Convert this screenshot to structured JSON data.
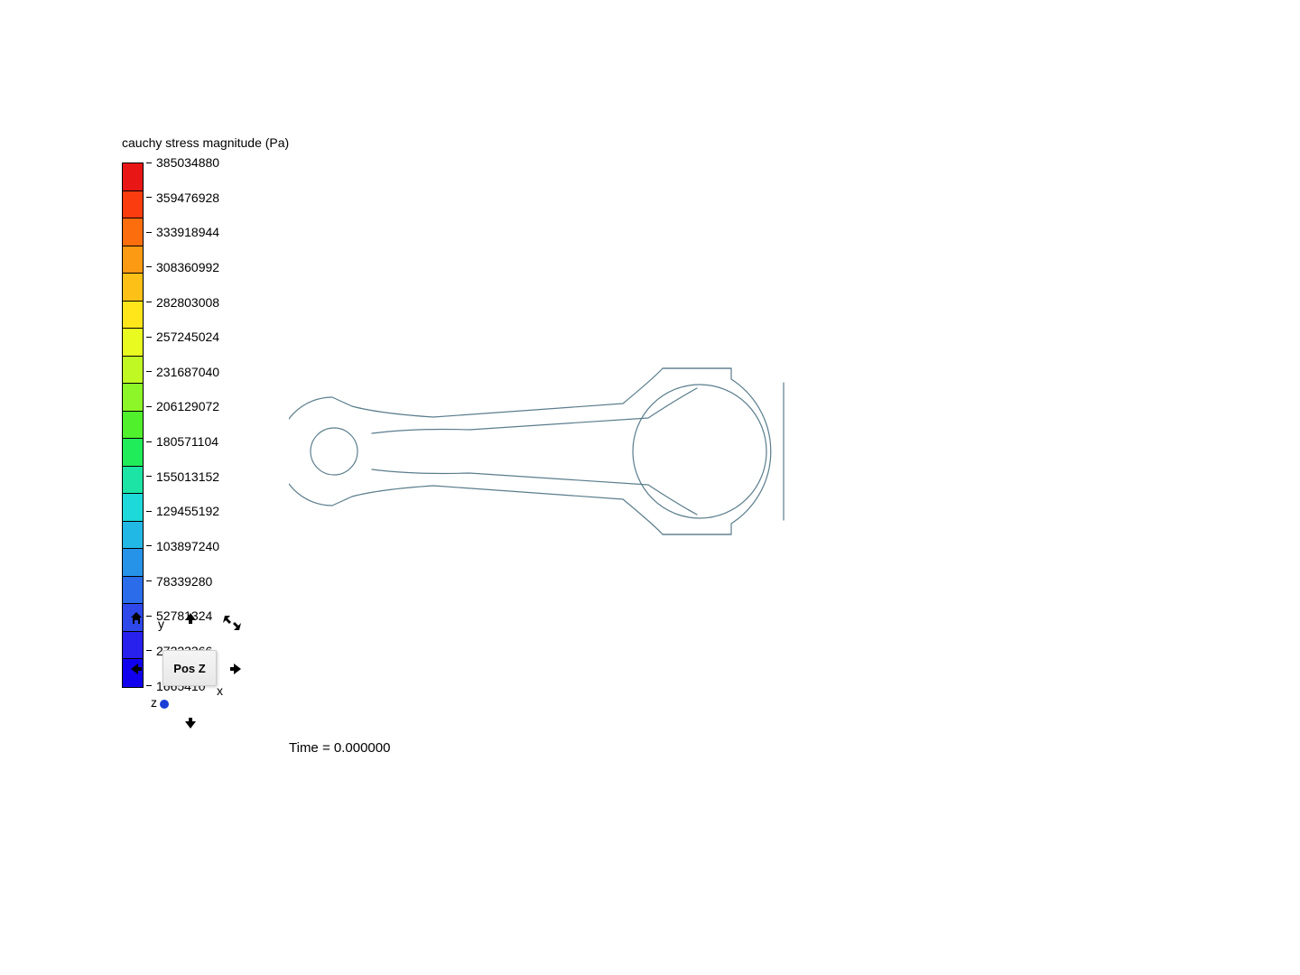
{
  "title": "cauchy stress magnitude (Pa)",
  "colorbar": {
    "colors": [
      "#e81715",
      "#fa3c0f",
      "#fc6d0e",
      "#fc9a14",
      "#fcc016",
      "#fee61b",
      "#e8fa20",
      "#c0f824",
      "#8cf628",
      "#50f12c",
      "#20eb58",
      "#1ce4a4",
      "#1dd9d9",
      "#22b8e6",
      "#2692e8",
      "#2a6ce9",
      "#2e48ea",
      "#2820ec",
      "#1100ee"
    ],
    "labels": [
      "385034880",
      "359476928",
      "333918944",
      "308360992",
      "282803008",
      "257245024",
      "231687040",
      "206129072",
      "180571104",
      "155013152",
      "129455192",
      "103897240",
      "78339280",
      "52781324",
      "27223366",
      "1665410"
    ],
    "swatch_height": 30.5,
    "swatch_width": 22,
    "label_fontsize": 14
  },
  "viewcube": {
    "face_label": "Pos Z",
    "axis_x": "x",
    "axis_y": "y",
    "axis_z": "z"
  },
  "time_label": "Time = 0.000000",
  "conrod": {
    "stroke_color": "#5a7d8c",
    "stroke_width": 1.2,
    "fill": "none"
  }
}
